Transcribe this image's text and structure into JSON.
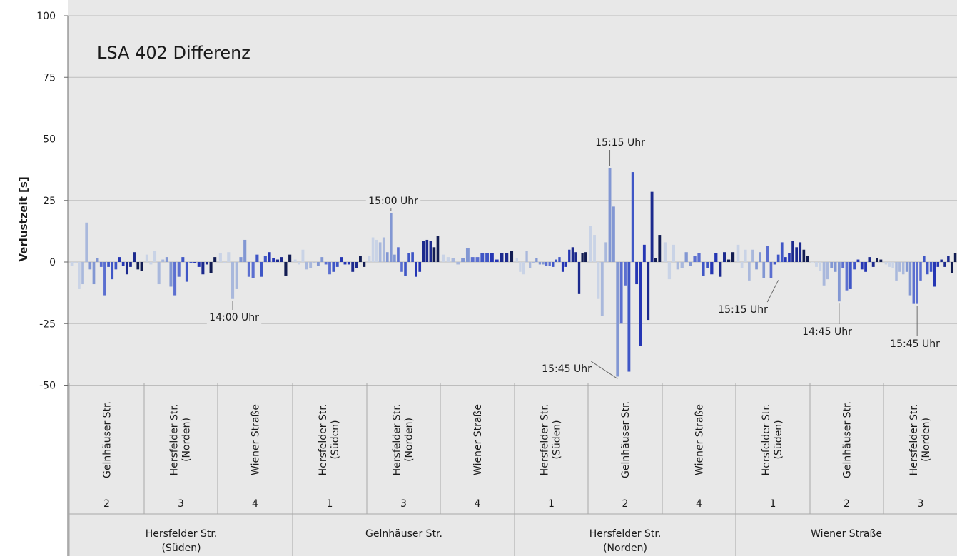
{
  "chart_data": {
    "type": "bar",
    "title": "LSA 402 Differenz",
    "ylabel": "Verlustzeit [s]",
    "xlabel": "",
    "ylim": [
      -50,
      100
    ],
    "yticks": [
      -50,
      -25,
      0,
      25,
      50,
      75,
      100
    ],
    "grid": true,
    "legend": "none",
    "colors": [
      "#c9d3e6",
      "#a9b8dc",
      "#8297d3",
      "#5b6fd0",
      "#3f56c6",
      "#2536b4",
      "#1c2a8e",
      "#121c52"
    ],
    "outer_groups": [
      {
        "label": "Hersfelder Str.\n(Süden)",
        "approaches": [
          {
            "label": "Gelnhäuser Str.",
            "number": "2",
            "values": [
              -1.5,
              -0.5,
              -11,
              -9,
              16,
              -3,
              -9,
              1.5,
              -2,
              -13.5,
              -2,
              -7,
              -3,
              2,
              -1.5,
              -5,
              -2,
              4,
              -3,
              -3.5
            ]
          },
          {
            "label": "Hersfelder Str.\n(Norden)",
            "number": "3",
            "values": [
              3,
              -1,
              4.5,
              -9,
              1,
              2,
              -10,
              -13.5,
              -6,
              2,
              -8,
              -0.5,
              -0.5,
              -2,
              -5,
              -1,
              -4.5,
              2
            ]
          },
          {
            "label": "Wiener Straße",
            "number": "4",
            "values": [
              3.5,
              -0.5,
              4,
              -15,
              -11,
              2,
              9,
              -6,
              -6.5,
              3,
              -6,
              2.5,
              4,
              1.5,
              1,
              2,
              -5.5,
              3
            ]
          }
        ]
      },
      {
        "label": "Gelnhäuser Str.",
        "approaches": [
          {
            "label": "Hersfelder Str.\n(Süden)",
            "number": "1",
            "values": [
              1,
              -1,
              5,
              -3,
              -2.5,
              0,
              -1.5,
              2,
              -1,
              -5,
              -4,
              -2,
              2,
              -1,
              -1,
              -4,
              -2.5,
              2.5,
              -2
            ]
          },
          {
            "label": "Hersfelder Str.\n(Norden)",
            "number": "3",
            "values": [
              2.5,
              10,
              9,
              8,
              10,
              4,
              20,
              3,
              6,
              -4,
              -5.5,
              3.5,
              4,
              -6,
              -4,
              8.5,
              9,
              8.5,
              6,
              10.5
            ]
          },
          {
            "label": "Wiener Straße",
            "number": "4",
            "values": [
              3,
              2,
              1.5,
              -1,
              1.5,
              5.5,
              2,
              2,
              3.5,
              3.5,
              3.5,
              1,
              3.5,
              3.5,
              4.5
            ]
          }
        ]
      },
      {
        "label": "Hersfelder Str.\n(Norden)",
        "approaches": [
          {
            "label": "Hersfelder Str.\n(Süden)",
            "number": "1",
            "values": [
              1.5,
              -4,
              -5,
              4.5,
              -2.5,
              -0.5,
              1.5,
              -1,
              -1,
              -1.5,
              -1.5,
              -2,
              1,
              2,
              -4,
              -2,
              5,
              6,
              4,
              -13,
              3.5,
              4
            ]
          },
          {
            "label": "Gelnhäuser Str.",
            "number": "2",
            "values": [
              14.5,
              11,
              -15,
              -22,
              8,
              38,
              22.5,
              -46.5,
              -25,
              -9.5,
              -44.5,
              36.5,
              -9,
              -34,
              7,
              -23.5,
              28.5,
              1.5,
              11
            ]
          },
          {
            "label": "Wiener Straße",
            "number": "4",
            "values": [
              8,
              -7,
              7,
              -3,
              -2.5,
              4,
              -1.5,
              2.5,
              3.5,
              -5.5,
              -2.5,
              -5,
              3.5,
              -6,
              4,
              1,
              4
            ]
          }
        ]
      },
      {
        "label": "Wiener Straße",
        "approaches": [
          {
            "label": "Hersfelder Str.\n(Süden)",
            "number": "1",
            "values": [
              7,
              -2.5,
              5,
              -7.5,
              5,
              -3,
              4,
              -6.5,
              6.5,
              -6.5,
              -1,
              3,
              8,
              2,
              3.5,
              8.5,
              6,
              8,
              5,
              2.5
            ]
          },
          {
            "label": "Gelnhäuser Str.",
            "number": "2",
            "values": [
              0,
              -2,
              -3.5,
              -9.5,
              -7,
              -2.5,
              -4,
              -16,
              -2.5,
              -11.5,
              -11,
              -3,
              1,
              -3,
              -4,
              2,
              -2,
              1.5,
              1
            ]
          },
          {
            "label": "Hersfelder Str.\n(Norden)",
            "number": "3",
            "values": [
              -1,
              -2,
              -2.5,
              -7.5,
              -4,
              -5,
              -4,
              -13.5,
              -17,
              -17,
              -7.5,
              2.5,
              -5,
              -4,
              -10,
              -2,
              1,
              -2,
              2.5,
              -4.5,
              3.5
            ]
          }
        ]
      }
    ],
    "annotations": [
      {
        "text": "14:00 Uhr",
        "x_group": 0,
        "x_approach": 2,
        "x_bar": 3,
        "y": -15
      },
      {
        "text": "15:00 Uhr",
        "x_group": 1,
        "x_approach": 1,
        "x_bar": 6,
        "y": 20
      },
      {
        "text": "15:15 Uhr",
        "x_group": 2,
        "x_approach": 1,
        "x_bar": 5,
        "y": 38
      },
      {
        "text": "15:45 Uhr",
        "x_group": 2,
        "x_approach": 1,
        "x_bar": 7,
        "y": -46.5
      },
      {
        "text": "15:15 Uhr",
        "x_group": 3,
        "x_approach": 0,
        "x_bar": 11,
        "y": -6.5
      },
      {
        "text": "14:45 Uhr",
        "x_group": 3,
        "x_approach": 1,
        "x_bar": 7,
        "y": -16
      },
      {
        "text": "15:45 Uhr",
        "x_group": 3,
        "x_approach": 2,
        "x_bar": 9,
        "y": -17
      }
    ]
  }
}
